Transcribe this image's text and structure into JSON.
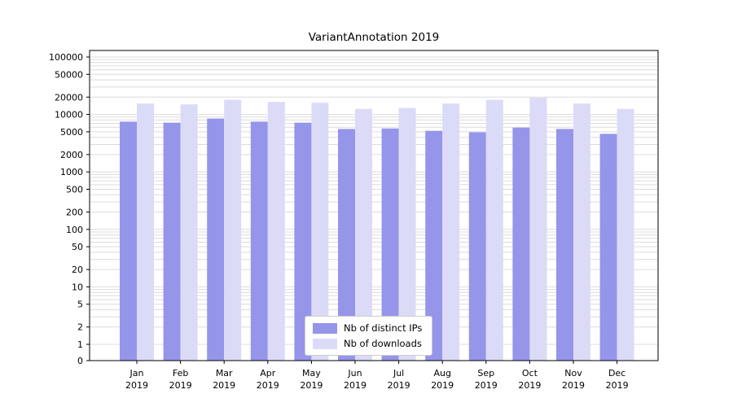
{
  "title": "VariantAnnotation 2019",
  "legend": {
    "items": [
      {
        "label": "Nb of distinct IPs",
        "color": "#9595ea"
      },
      {
        "label": "Nb of downloads",
        "color": "#dbdbf8"
      }
    ]
  },
  "chart_data": {
    "type": "bar",
    "title": "VariantAnnotation 2019",
    "categories": [
      "Jan",
      "Feb",
      "Mar",
      "Apr",
      "May",
      "Jun",
      "Jul",
      "Aug",
      "Sep",
      "Oct",
      "Nov",
      "Dec"
    ],
    "year_label": "2019",
    "series": [
      {
        "name": "Nb of distinct IPs",
        "color": "#9595ea",
        "values": [
          7500,
          7200,
          8500,
          7500,
          7200,
          5600,
          5700,
          5200,
          4900,
          5900,
          5600,
          4600
        ]
      },
      {
        "name": "Nb of downloads",
        "color": "#dbdbf8",
        "values": [
          15500,
          15000,
          18000,
          16500,
          16000,
          12500,
          13000,
          15500,
          18000,
          19500,
          15500,
          12500
        ]
      }
    ],
    "yscale": "symlog",
    "ylim": [
      0,
      100000
    ],
    "yticks": [
      0,
      1,
      2,
      5,
      10,
      20,
      50,
      100,
      200,
      500,
      1000,
      2000,
      5000,
      10000,
      20000,
      50000,
      100000
    ],
    "grid": true,
    "legend_position": "lower center"
  }
}
